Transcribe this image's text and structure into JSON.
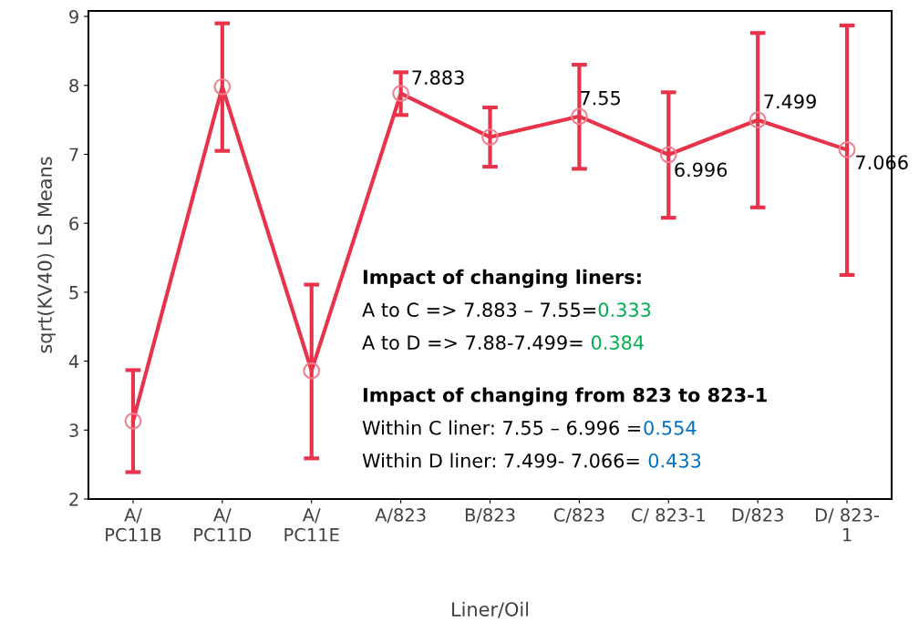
{
  "chart_data": {
    "type": "line",
    "categories": [
      "A/\nPC11B",
      "A/\nPC11D",
      "A/\nPC11E",
      "A/823",
      "B/823",
      "C/823",
      "C/ 823-1",
      "D/823",
      "D/ 823-\n1"
    ],
    "series": [
      {
        "color": "#e8334a",
        "values": [
          3.13,
          7.98,
          3.86,
          7.883,
          7.25,
          7.55,
          6.996,
          7.499,
          7.066
        ],
        "errors": [
          [
            2.39,
            3.87
          ],
          [
            7.05,
            8.9
          ],
          [
            2.59,
            5.11
          ],
          [
            7.57,
            8.19
          ],
          [
            6.82,
            7.68
          ],
          [
            6.79,
            8.3
          ],
          [
            6.08,
            7.9
          ],
          [
            6.23,
            8.76
          ],
          [
            5.25,
            8.87
          ]
        ],
        "value_labels": [
          null,
          null,
          null,
          "7.883",
          null,
          "7.55",
          "6.996",
          "7.499",
          "7.066"
        ]
      }
    ],
    "xlabel": "Liner/Oil",
    "ylabel": "sqrt(KV40) LS Means",
    "ylim": [
      2,
      9.08
    ],
    "yticks": [
      2,
      3,
      4,
      5,
      6,
      7,
      8,
      9
    ],
    "marker": "circle",
    "line_style": "solid",
    "grid": false,
    "legend": false,
    "annotations": [
      "Impact of changing liners:",
      "A to C => 7.883 – 7.55=",
      "0.333",
      "A to D => 7.88-7.499= ",
      "0.384",
      "Impact of changing from 823 to 823-1",
      "Within C liner: 7.55 – 6.996 =",
      "0.554",
      "Within D liner: 7.499- 7.066= ",
      "0.433"
    ]
  }
}
